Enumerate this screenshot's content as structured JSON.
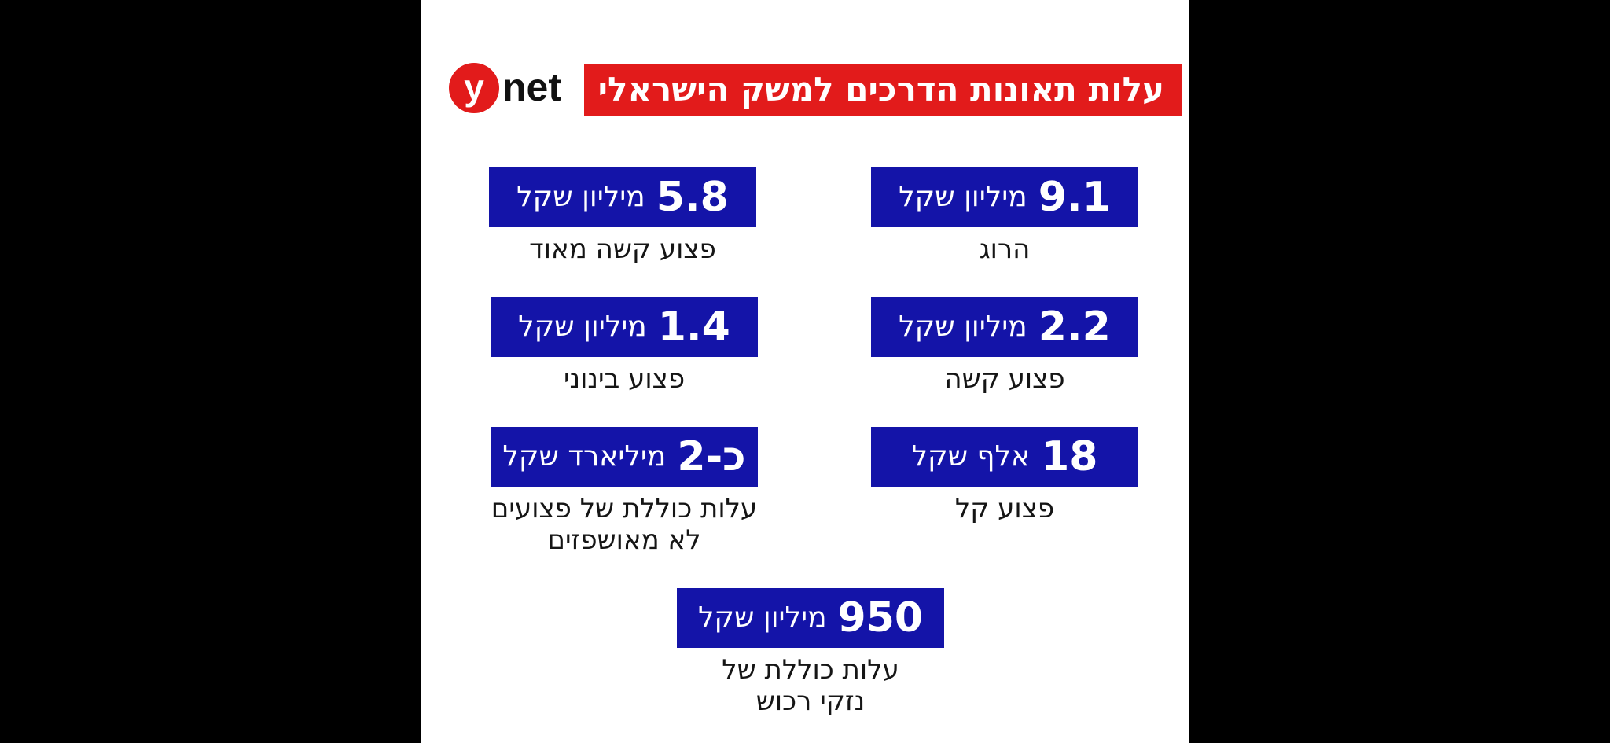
{
  "infographic": {
    "title": "עלות תאונות הדרכים למשק הישראלי",
    "logo": {
      "letter": "y",
      "rest": "net"
    },
    "colors": {
      "title_bar": "#e21b1b",
      "badge": "#1414a8",
      "background": "#000000"
    },
    "items": [
      {
        "value": "9.1",
        "unit": "מיליון שקל",
        "desc": [
          "הרוג"
        ]
      },
      {
        "value": "5.8",
        "unit": "מיליון שקל",
        "desc": [
          "פצוע קשה מאוד"
        ]
      },
      {
        "value": "2.2",
        "unit": "מיליון שקל",
        "desc": [
          "פצוע קשה"
        ]
      },
      {
        "value": "1.4",
        "unit": "מיליון שקל",
        "desc": [
          "פצוע בינוני"
        ]
      },
      {
        "value": "18",
        "unit": "אלף שקל",
        "desc": [
          "פצוע קל"
        ]
      },
      {
        "value": "כ-2",
        "unit": "מיליארד שקל",
        "desc": [
          "עלות כוללת של פצועים",
          "לא מאושפזים"
        ]
      },
      {
        "value": "950",
        "unit": "מיליון שקל",
        "desc": [
          "עלות כוללת של",
          "נזקי רכוש"
        ]
      }
    ]
  }
}
